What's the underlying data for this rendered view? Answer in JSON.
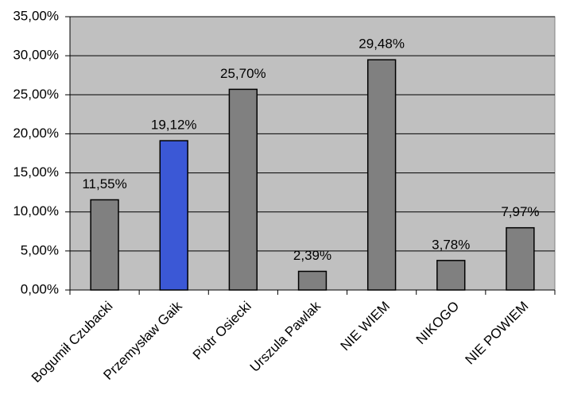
{
  "chart_data": {
    "type": "bar",
    "categories": [
      "Bogumił Czubacki",
      "Przemysław Gaik",
      "Piotr Osiecki",
      "Urszula Pawlak",
      "NIE WIEM",
      "NIKOGO",
      "NIE POWIEM"
    ],
    "values": [
      11.55,
      19.12,
      25.7,
      2.39,
      29.48,
      3.78,
      7.97
    ],
    "value_labels": [
      "11,55%",
      "19,12%",
      "25,70%",
      "2,39%",
      "29,48%",
      "3,78%",
      "7,97%"
    ],
    "colors": [
      "#808080",
      "#3b58d6",
      "#808080",
      "#808080",
      "#808080",
      "#808080",
      "#808080"
    ],
    "ylim": [
      0,
      35
    ],
    "yticks": [
      {
        "value": 0,
        "label": "0,00%"
      },
      {
        "value": 5,
        "label": "5,00%"
      },
      {
        "value": 10,
        "label": "10,00%"
      },
      {
        "value": 15,
        "label": "15,00%"
      },
      {
        "value": 20,
        "label": "20,00%"
      },
      {
        "value": 25,
        "label": "25,00%"
      },
      {
        "value": 30,
        "label": "30,00%"
      },
      {
        "value": 35,
        "label": "35,00%"
      }
    ],
    "grid": true
  }
}
